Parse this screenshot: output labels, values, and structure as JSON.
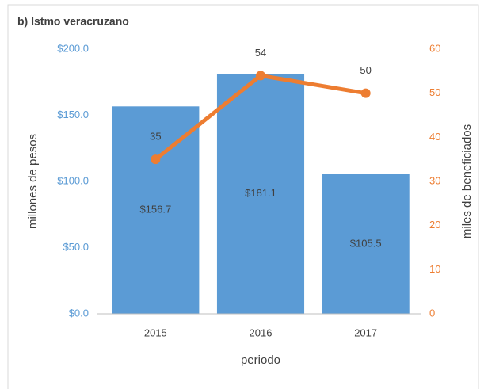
{
  "chart_data": {
    "type": "bar",
    "title": "b) Istmo veracruzano",
    "categories": [
      "2015",
      "2016",
      "2017"
    ],
    "series": [
      {
        "type": "bar",
        "color": "#5b9bd5",
        "values": [
          156.7,
          181.1,
          105.5
        ],
        "value_labels": [
          "$156.7",
          "$181.1",
          "$105.5"
        ]
      },
      {
        "type": "line",
        "axis": "y2",
        "color": "#ed7d31",
        "values": [
          35,
          54,
          50
        ]
      }
    ],
    "ylim": [
      0,
      200
    ],
    "yticks": [
      {
        "value": 0,
        "label": "$0.0"
      },
      {
        "value": 50,
        "label": "$50.0"
      },
      {
        "value": 100,
        "label": "$100.0"
      },
      {
        "value": 150,
        "label": "$150.0"
      },
      {
        "value": 200,
        "label": "$200.0"
      }
    ],
    "y2lim": [
      0,
      60
    ],
    "y2ticks": [
      0,
      10,
      20,
      30,
      40,
      50,
      60
    ],
    "ylabel": "millones de pesos",
    "y2label": "miles de beneficiados",
    "xlabel": "periodo",
    "grid": false
  }
}
